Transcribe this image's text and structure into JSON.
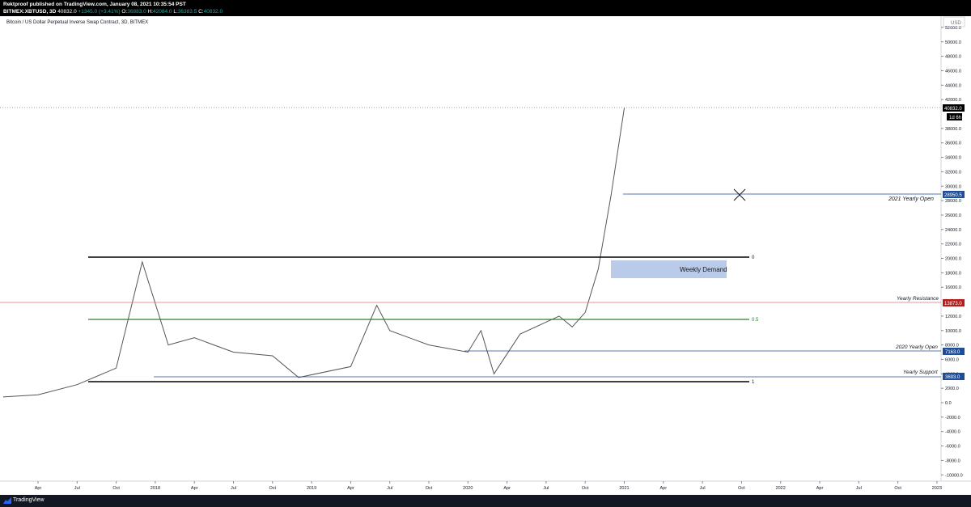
{
  "header": {
    "publish_line": "Rektproof published on TradingView.com, January 08, 2021 10:35:54 PST",
    "symbol": "BITMEX:XBTUSD, 3D",
    "price": "40832.0",
    "change": "+1345.0 (+3.41%)",
    "o_label": "O:",
    "o_val": "36883.0",
    "h_label": "H:",
    "h_val": "42084.0",
    "l_label": "L:",
    "l_val": "36383.5",
    "c_label": "C:",
    "c_val": "40832.0"
  },
  "chart_title": "Bitcoin / US Dollar Perpetual Inverse Swap Contract, 3D, BITMEX",
  "price_axis": {
    "currency": "USD",
    "ticks": [
      "52000.0",
      "50000.0",
      "48000.0",
      "46000.0",
      "44000.0",
      "42000.0",
      "38000.0",
      "36000.0",
      "34000.0",
      "32000.0",
      "30000.0",
      "28000.0",
      "26000.0",
      "24000.0",
      "22000.0",
      "20000.0",
      "18000.0",
      "16000.0",
      "12000.0",
      "10000.0",
      "8000.0",
      "6000.0",
      "4000.0",
      "2000.0",
      "0.0",
      "-2000.0",
      "-4000.0",
      "-6000.0",
      "-8000.0",
      "-10000.0"
    ]
  },
  "time_axis": {
    "ticks": [
      "Apr",
      "Jul",
      "Oct",
      "2018",
      "Apr",
      "Jul",
      "Oct",
      "2019",
      "Apr",
      "Jul",
      "Oct",
      "2020",
      "Apr",
      "Jul",
      "Oct",
      "2021",
      "Apr",
      "Jul",
      "Oct",
      "2022",
      "Apr",
      "Jul",
      "Oct",
      "2023"
    ]
  },
  "price_tags": {
    "last": "40832.0",
    "countdown": "1d 6h",
    "open_2021": "28950.5",
    "resistance": "13873.0",
    "open_2020": "7163.0",
    "support": "3693.0"
  },
  "annotations": {
    "open_2021_label": "2021 Yearly Open",
    "weekly_demand": "Weekly Demand",
    "fib_0": "0",
    "fib_05": "0.5",
    "fib_1": "1",
    "resistance_label": "Yearly Resistance",
    "open_2020_label": "2020 Yearly Open",
    "support_label": "Yearly Support"
  },
  "colors": {
    "resistance": "#b71c1c",
    "blue": "#1e4e9a",
    "green": "#2e7d32",
    "demand": "#b9cbe8"
  },
  "footer": {
    "brand": "TradingView"
  },
  "chart_data": {
    "type": "line",
    "x": [
      "2017-04",
      "2017-07",
      "2017-10",
      "2017-12",
      "2018-02",
      "2018-04",
      "2018-07",
      "2018-10",
      "2018-12",
      "2019-04",
      "2019-06",
      "2019-07",
      "2019-10",
      "2020-01",
      "2020-02",
      "2020-03",
      "2020-05",
      "2020-08",
      "2020-09",
      "2020-10",
      "2020-11",
      "2020-12",
      "2021-01"
    ],
    "series": [
      {
        "values": [
          1100,
          2500,
          4800,
          19500,
          8000,
          9000,
          7000,
          6500,
          3500,
          5000,
          13500,
          10000,
          8000,
          7000,
          10000,
          4000,
          9500,
          12000,
          10500,
          12500,
          18500,
          28900,
          40832
        ]
      }
    ],
    "ylim": [
      -11000,
      53000
    ]
  }
}
